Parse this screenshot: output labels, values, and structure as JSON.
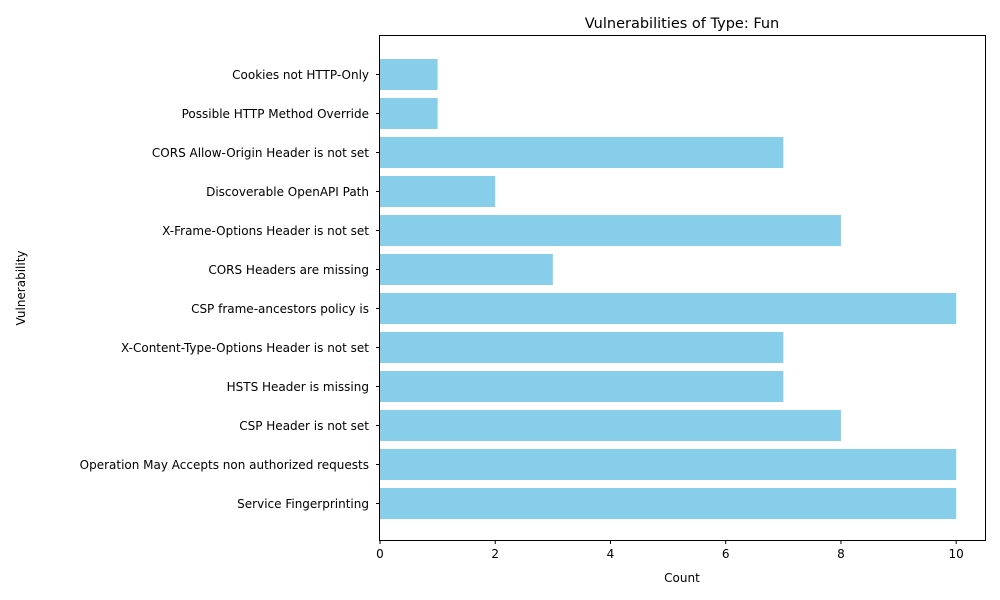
{
  "chart_data": {
    "type": "bar",
    "orientation": "horizontal",
    "title": "Vulnerabilities of Type: Fun",
    "xlabel": "Count",
    "ylabel": "Vulnerability",
    "xlim": [
      0,
      10.5
    ],
    "x_ticks": [
      0,
      2,
      4,
      6,
      8,
      10
    ],
    "grid": false,
    "bar_color": "#87ceeb",
    "categories": [
      "Cookies not HTTP-Only",
      "Possible HTTP Method Override",
      "CORS Allow-Origin Header is not set",
      "Discoverable OpenAPI Path",
      "X-Frame-Options Header is not set",
      "CORS Headers are missing",
      "CSP frame-ancestors policy is",
      "X-Content-Type-Options Header is not set",
      "HSTS Header is missing",
      "CSP Header is not set",
      "Operation May Accepts non authorized requests",
      "Service Fingerprinting"
    ],
    "values": [
      1,
      1,
      7,
      2,
      8,
      3,
      10,
      7,
      7,
      8,
      10,
      10
    ]
  }
}
